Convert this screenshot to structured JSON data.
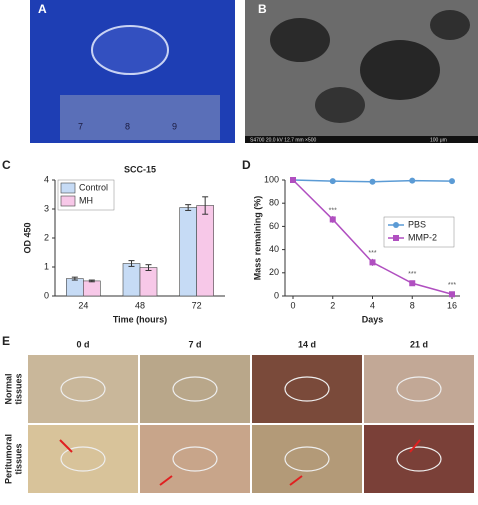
{
  "panels": {
    "a": "A",
    "b": "B",
    "c": "C",
    "d": "D",
    "e": "E"
  },
  "ruler": [
    "7",
    "8",
    "9"
  ],
  "sem": {
    "info": "S4700 20.0 kV 12.7 mm ×500",
    "scale": "100 μm"
  },
  "photos": {
    "columns": [
      "0 d",
      "7 d",
      "14 d",
      "21 d"
    ],
    "rows": [
      [
        "Normal",
        "tissues"
      ],
      [
        "Peritumoral",
        "tissues"
      ]
    ]
  },
  "chart_data": [
    {
      "type": "bar",
      "title": "SCC-15",
      "x_label": "Time (hours)",
      "y_label": "OD 450",
      "categories": [
        "24",
        "48",
        "72"
      ],
      "series": [
        {
          "name": "Control",
          "color": "#c6dbf5",
          "values": [
            0.6,
            1.12,
            3.05
          ],
          "errors": [
            0.05,
            0.1,
            0.1
          ]
        },
        {
          "name": "MH",
          "color": "#f7c8e8",
          "values": [
            0.52,
            0.98,
            3.12
          ],
          "errors": [
            0.03,
            0.1,
            0.3
          ]
        }
      ],
      "ylim": [
        0,
        4
      ],
      "yticks": [
        0,
        1,
        2,
        3,
        4
      ],
      "legend": "upper left"
    },
    {
      "type": "line",
      "x_label": "Days",
      "y_label": "Mass remaining (%)",
      "categories": [
        "0",
        "2",
        "4",
        "8",
        "16"
      ],
      "series": [
        {
          "name": "PBS",
          "color": "#5b9bd5",
          "marker": "circle",
          "values": [
            100,
            99,
            98.5,
            99.5,
            99
          ]
        },
        {
          "name": "MMP-2",
          "color": "#b04fc0",
          "marker": "square",
          "values": [
            100,
            66,
            29,
            11,
            1.5
          ],
          "errors": [
            0,
            3,
            3,
            2,
            1
          ],
          "annotations": [
            null,
            "***",
            "***",
            "***",
            "***"
          ]
        }
      ],
      "ylim": [
        0,
        100
      ],
      "yticks": [
        0,
        20,
        40,
        60,
        80,
        100
      ],
      "legend": "center right"
    }
  ]
}
